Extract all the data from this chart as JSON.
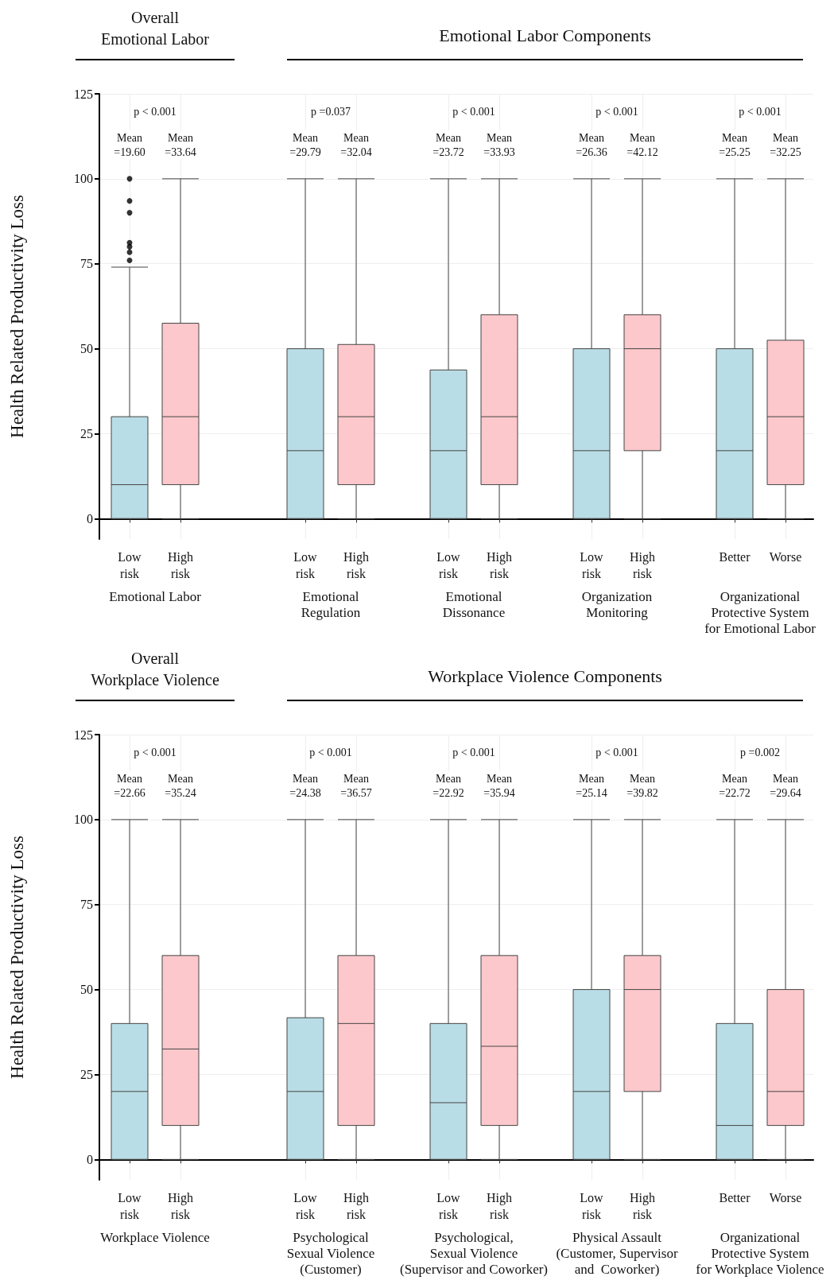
{
  "chart_data": [
    {
      "type": "box",
      "ylabel": "Health Related Productivity Loss",
      "categories": [
        "Low\nrisk",
        "High\nrisk",
        "Low\nrisk",
        "High\nrisk",
        "Low\nrisk",
        "High\nrisk",
        "Low\nrisk",
        "High\nrisk",
        "Better",
        "Worse"
      ],
      "colors": [
        "#b9dde6",
        "#fdc8cb",
        "#b9dde6",
        "#fdc8cb",
        "#b9dde6",
        "#fdc8cb",
        "#b9dde6",
        "#fdc8cb",
        "#b9dde6",
        "#fdc8cb"
      ],
      "boxes": [
        {
          "low": 0,
          "q1": 0,
          "median": 10,
          "q3": 30,
          "high": 74,
          "outliers": [
            76,
            78.4,
            80,
            81.2,
            90,
            93.5,
            100
          ]
        },
        {
          "low": 0,
          "q1": 10,
          "median": 30,
          "q3": 57.5,
          "high": 100
        },
        {
          "low": 0,
          "q1": 0,
          "median": 20,
          "q3": 50,
          "high": 100
        },
        {
          "low": 0,
          "q1": 10,
          "median": 30,
          "q3": 51.25,
          "high": 100
        },
        {
          "low": 0,
          "q1": 0,
          "median": 20,
          "q3": 43.75,
          "high": 100
        },
        {
          "low": 0,
          "q1": 10,
          "median": 30,
          "q3": 60,
          "high": 100
        },
        {
          "low": 0,
          "q1": 0,
          "median": 20,
          "q3": 50,
          "high": 100
        },
        {
          "low": 0,
          "q1": 20,
          "median": 50,
          "q3": 60,
          "high": 100
        },
        {
          "low": 0,
          "q1": 0,
          "median": 20,
          "q3": 50,
          "high": 100
        },
        {
          "low": 0,
          "q1": 10,
          "median": 30,
          "q3": 52.5,
          "high": 100
        }
      ],
      "ylim": [
        -6,
        125
      ],
      "yticks": [
        0,
        25,
        50,
        75,
        100,
        125
      ],
      "grid": true,
      "annotations": [
        "Overall\nEmotional Labor",
        "Emotional Labor Components",
        "Emotional Labor",
        "Emotional\nRegulation",
        "Emotional\nDissonance",
        "Organization\nMonitoring",
        "Organizational\nProtective System\nfor Emotional Labor",
        "p < 0.001",
        "p =0.037",
        "p < 0.001",
        "p < 0.001",
        "p < 0.001",
        "Mean\n=19.60",
        "Mean\n=33.64",
        "Mean\n=29.79",
        "Mean\n=32.04",
        "Mean\n=23.72",
        "Mean\n=33.93",
        "Mean\n=26.36",
        "Mean\n=42.12",
        "Mean\n=25.25",
        "Mean\n=32.25"
      ]
    },
    {
      "type": "box",
      "ylabel": "Health Related Productivity Loss",
      "categories": [
        "Low\nrisk",
        "High\nrisk",
        "Low\nrisk",
        "High\nrisk",
        "Low\nrisk",
        "High\nrisk",
        "Low\nrisk",
        "High\nrisk",
        "Better",
        "Worse"
      ],
      "colors": [
        "#b9dde6",
        "#fdc8cb",
        "#b9dde6",
        "#fdc8cb",
        "#b9dde6",
        "#fdc8cb",
        "#b9dde6",
        "#fdc8cb",
        "#b9dde6",
        "#fdc8cb"
      ],
      "boxes": [
        {
          "low": 0,
          "q1": 0,
          "median": 20,
          "q3": 40,
          "high": 100
        },
        {
          "low": 0,
          "q1": 10,
          "median": 32.5,
          "q3": 60,
          "high": 100
        },
        {
          "low": 0,
          "q1": 0,
          "median": 20,
          "q3": 41.7,
          "high": 100
        },
        {
          "low": 0,
          "q1": 10,
          "median": 40,
          "q3": 60,
          "high": 100
        },
        {
          "low": 0,
          "q1": 0,
          "median": 16.7,
          "q3": 40,
          "high": 100
        },
        {
          "low": 0,
          "q1": 10,
          "median": 33.3,
          "q3": 60,
          "high": 100
        },
        {
          "low": 0,
          "q1": 0,
          "median": 20,
          "q3": 50,
          "high": 100
        },
        {
          "low": 0,
          "q1": 20,
          "median": 50,
          "q3": 60,
          "high": 100
        },
        {
          "low": 0,
          "q1": 0,
          "median": 10,
          "q3": 40,
          "high": 100
        },
        {
          "low": 0,
          "q1": 10,
          "median": 20,
          "q3": 50,
          "high": 100
        }
      ],
      "ylim": [
        -6,
        125
      ],
      "yticks": [
        0,
        25,
        50,
        75,
        100,
        125
      ],
      "grid": true,
      "annotations": [
        "Overall\nWorkplace Violence",
        "Workplace Violence Components",
        "Workplace Violence",
        "Psychological\nSexual Violence\n(Customer)",
        "Psychological,\nSexual Violence\n(Supervisor and Coworker)",
        "Physical Assault\n(Customer, Supervisor\nand  Coworker)",
        "Organizational\nProtective System\nfor Workplace Violence",
        "p < 0.001",
        "p < 0.001",
        "p < 0.001",
        "p < 0.001",
        "p =0.002",
        "Mean\n=22.66",
        "Mean\n=35.24",
        "Mean\n=24.38",
        "Mean\n=36.57",
        "Mean\n=22.92",
        "Mean\n=35.94",
        "Mean\n=25.14",
        "Mean\n=39.82",
        "Mean\n=22.72",
        "Mean\n=29.64"
      ]
    }
  ]
}
